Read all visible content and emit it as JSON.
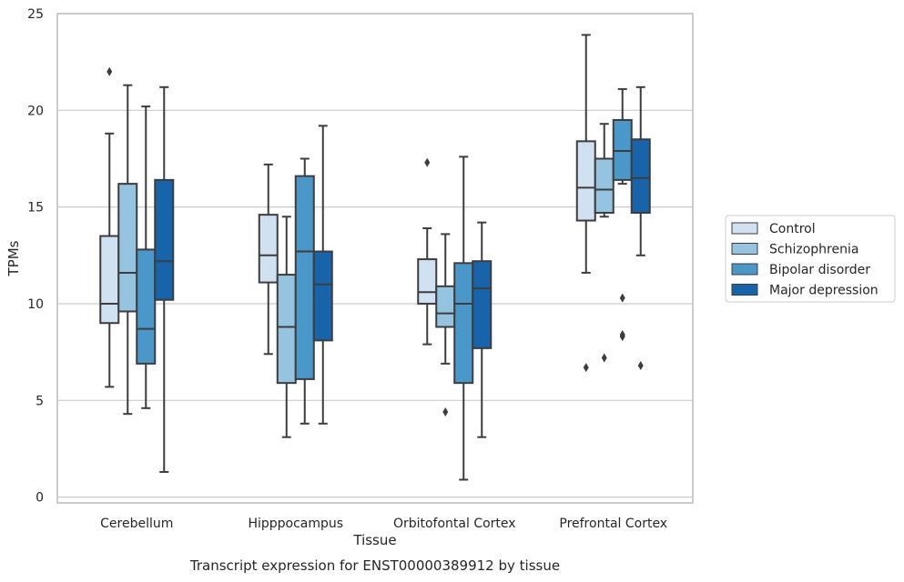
{
  "caption": "Transcript expression for ENST00000389912 by tissue",
  "chart_data": {
    "type": "boxplot",
    "title": "",
    "xlabel": "Tissue",
    "ylabel": "TPMs",
    "ylim": [
      -0.3,
      25
    ],
    "yticks": [
      0,
      5,
      10,
      15,
      20,
      25
    ],
    "grid": "horizontal",
    "legend_position": "outside-right",
    "categories": [
      "Cerebellum",
      "Hipppocampus",
      "Orbitofontal Cortex",
      "Prefrontal Cortex"
    ],
    "series": [
      {
        "name": "Control",
        "color": "#d0e1f2",
        "boxes": [
          {
            "whislo": 5.7,
            "q1": 9.0,
            "med": 10.0,
            "q3": 13.5,
            "whishi": 18.8,
            "fliers": [
              22.0
            ]
          },
          {
            "whislo": 7.4,
            "q1": 11.1,
            "med": 12.5,
            "q3": 14.6,
            "whishi": 17.2,
            "fliers": []
          },
          {
            "whislo": 7.9,
            "q1": 10.0,
            "med": 10.6,
            "q3": 12.3,
            "whishi": 13.9,
            "fliers": [
              17.3
            ]
          },
          {
            "whislo": 11.6,
            "q1": 14.3,
            "med": 16.0,
            "q3": 18.4,
            "whishi": 23.9,
            "fliers": [
              6.7
            ]
          }
        ]
      },
      {
        "name": "Schizophrenia",
        "color": "#94c4df",
        "boxes": [
          {
            "whislo": 4.3,
            "q1": 9.6,
            "med": 11.6,
            "q3": 16.2,
            "whishi": 21.3,
            "fliers": []
          },
          {
            "whislo": 3.1,
            "q1": 5.9,
            "med": 8.8,
            "q3": 11.5,
            "whishi": 14.5,
            "fliers": []
          },
          {
            "whislo": 6.9,
            "q1": 8.8,
            "med": 9.5,
            "q3": 10.9,
            "whishi": 13.6,
            "fliers": [
              4.4
            ]
          },
          {
            "whislo": 14.5,
            "q1": 14.7,
            "med": 15.9,
            "q3": 17.5,
            "whishi": 19.3,
            "fliers": [
              7.2
            ]
          }
        ]
      },
      {
        "name": "Bipolar disorder",
        "color": "#4a98c9",
        "boxes": [
          {
            "whislo": 4.6,
            "q1": 6.9,
            "med": 8.7,
            "q3": 12.8,
            "whishi": 20.2,
            "fliers": []
          },
          {
            "whislo": 3.8,
            "q1": 6.1,
            "med": 12.7,
            "q3": 16.6,
            "whishi": 17.5,
            "fliers": []
          },
          {
            "whislo": 0.9,
            "q1": 5.9,
            "med": 10.0,
            "q3": 12.1,
            "whishi": 17.6,
            "fliers": []
          },
          {
            "whislo": 16.2,
            "q1": 16.4,
            "med": 17.9,
            "q3": 19.5,
            "whishi": 21.1,
            "fliers": [
              10.3,
              8.3,
              8.4
            ]
          }
        ]
      },
      {
        "name": "Major depression",
        "color": "#1764ab",
        "boxes": [
          {
            "whislo": 1.3,
            "q1": 10.2,
            "med": 12.2,
            "q3": 16.4,
            "whishi": 21.2,
            "fliers": []
          },
          {
            "whislo": 3.8,
            "q1": 8.1,
            "med": 11.0,
            "q3": 12.7,
            "whishi": 19.2,
            "fliers": []
          },
          {
            "whislo": 3.1,
            "q1": 7.7,
            "med": 10.8,
            "q3": 12.2,
            "whishi": 14.2,
            "fliers": []
          },
          {
            "whislo": 12.5,
            "q1": 14.7,
            "med": 16.5,
            "q3": 18.5,
            "whishi": 21.2,
            "fliers": [
              6.8
            ]
          }
        ]
      }
    ]
  }
}
